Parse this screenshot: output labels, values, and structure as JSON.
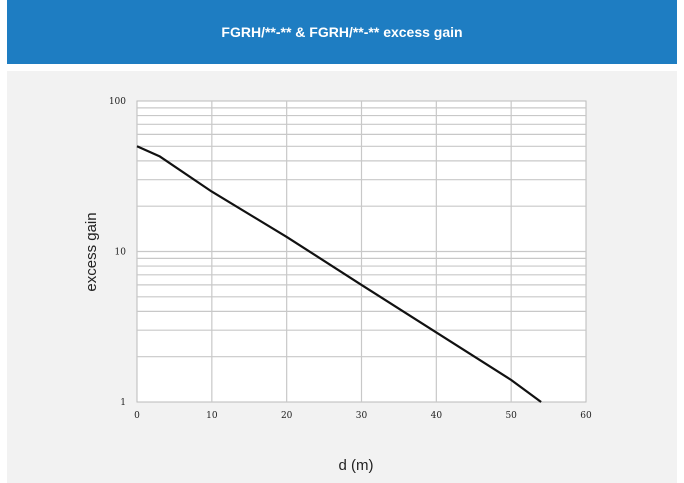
{
  "header": {
    "title": "FGRH/**-** & FGRH/**-**  excess gain"
  },
  "chart_data": {
    "type": "line",
    "title": "FGRH/**-** & FGRH/**-**  excess gain",
    "xlabel": "d (m)",
    "ylabel": "excess gain",
    "xlim": [
      0,
      60
    ],
    "ylim": [
      1,
      100
    ],
    "yscale": "log",
    "grid": true,
    "x_ticks": [
      "0",
      "10",
      "20",
      "30",
      "40",
      "50",
      "60"
    ],
    "y_ticks": [
      "1",
      "10",
      "100"
    ],
    "series": [
      {
        "x": [
          0,
          3,
          10,
          20,
          30,
          40,
          50,
          54
        ],
        "y": [
          50,
          43,
          25,
          12.5,
          6,
          2.9,
          1.4,
          1.0
        ]
      }
    ],
    "colors": {
      "header": "#1e7dc2",
      "panel": "#f2f2f2",
      "plot_bg": "#ffffff",
      "grid": "#c8c8c8",
      "line": "#111111"
    }
  }
}
